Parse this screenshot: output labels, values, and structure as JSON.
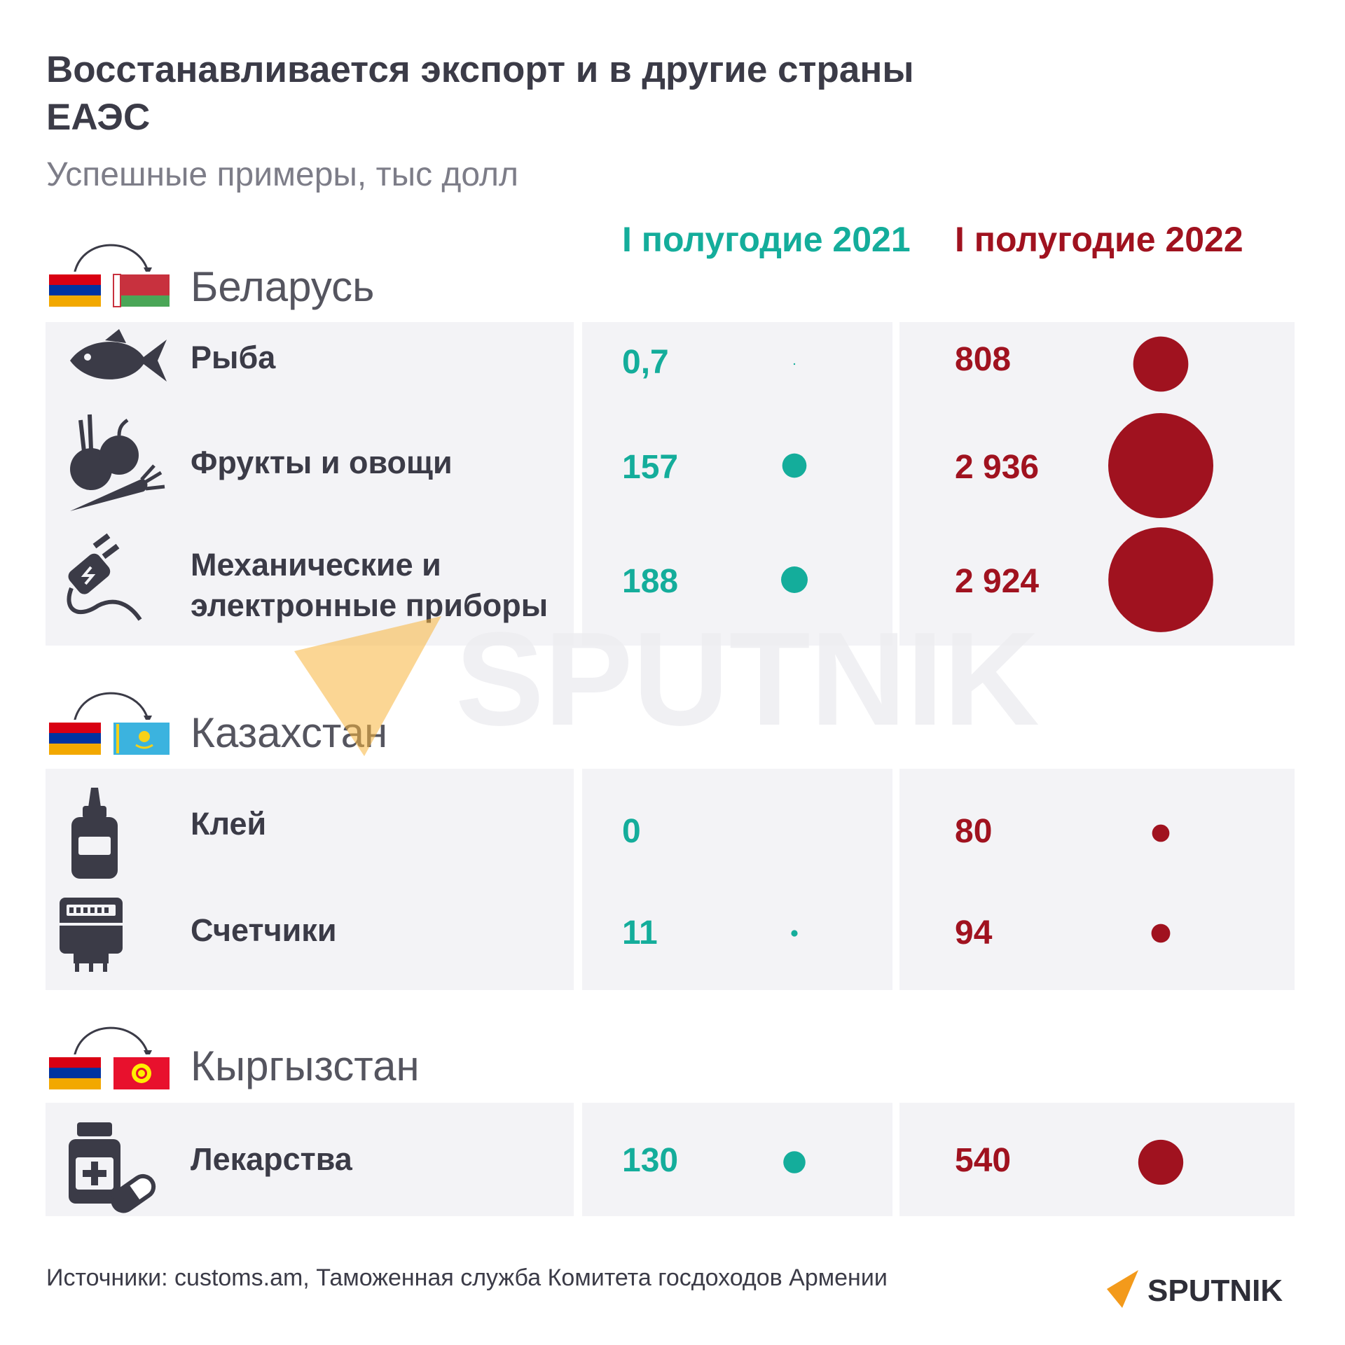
{
  "title": "Восстанавливается экспорт и в другие страны ЕАЭС",
  "subtitle": "Успешные примеры, тыс долл",
  "columns": {
    "h2021": "I полугодие 2021",
    "h2022": "I полугодие 2022"
  },
  "colors": {
    "teal": "#14ad9b",
    "red": "#a0121f",
    "panel": "#f3f3f6"
  },
  "groups": [
    {
      "country": "Беларусь",
      "flag": "belarus-flag",
      "items": [
        {
          "label": "Рыба",
          "icon": "fish-icon",
          "v2021": "0,7",
          "v2022": "808"
        },
        {
          "label": "Фрукты и овощи",
          "icon": "fruits-vegetables-icon",
          "v2021": "157",
          "v2022": "2 936"
        },
        {
          "label": "Механические и электронные приборы",
          "icon": "plug-icon",
          "v2021": "188",
          "v2022": "2 924"
        }
      ]
    },
    {
      "country": "Казахстан",
      "flag": "kazakhstan-flag",
      "items": [
        {
          "label": "Клей",
          "icon": "glue-icon",
          "v2021": "0",
          "v2022": "80"
        },
        {
          "label": "Счетчики",
          "icon": "meter-icon",
          "v2021": "11",
          "v2022": "94"
        }
      ]
    },
    {
      "country": "Кыргызстан",
      "flag": "kyrgyzstan-flag",
      "items": [
        {
          "label": "Лекарства",
          "icon": "medicine-icon",
          "v2021": "130",
          "v2022": "540"
        }
      ]
    }
  ],
  "chart_data": {
    "type": "table",
    "title": "Восстанавливается экспорт и в другие страны ЕАЭС",
    "subtitle": "Успешные примеры, тыс долл",
    "series": [
      {
        "name": "I полугодие 2021",
        "values": [
          0.7,
          157,
          188,
          0,
          11,
          130
        ]
      },
      {
        "name": "I полугодие 2022",
        "values": [
          808,
          2936,
          2924,
          80,
          94,
          540
        ]
      }
    ],
    "categories": [
      "Рыба",
      "Фрукты и овощи",
      "Механические и электронные приборы",
      "Клей",
      "Счетчики",
      "Лекарства"
    ],
    "groups": [
      "Беларусь",
      "Беларусь",
      "Беларусь",
      "Казахстан",
      "Казахстан",
      "Кыргызстан"
    ]
  },
  "footer": {
    "source": "Источники: customs.am, Таможенная служба Комитета госдоходов Армении",
    "logo_text": "SPUTNIK"
  }
}
